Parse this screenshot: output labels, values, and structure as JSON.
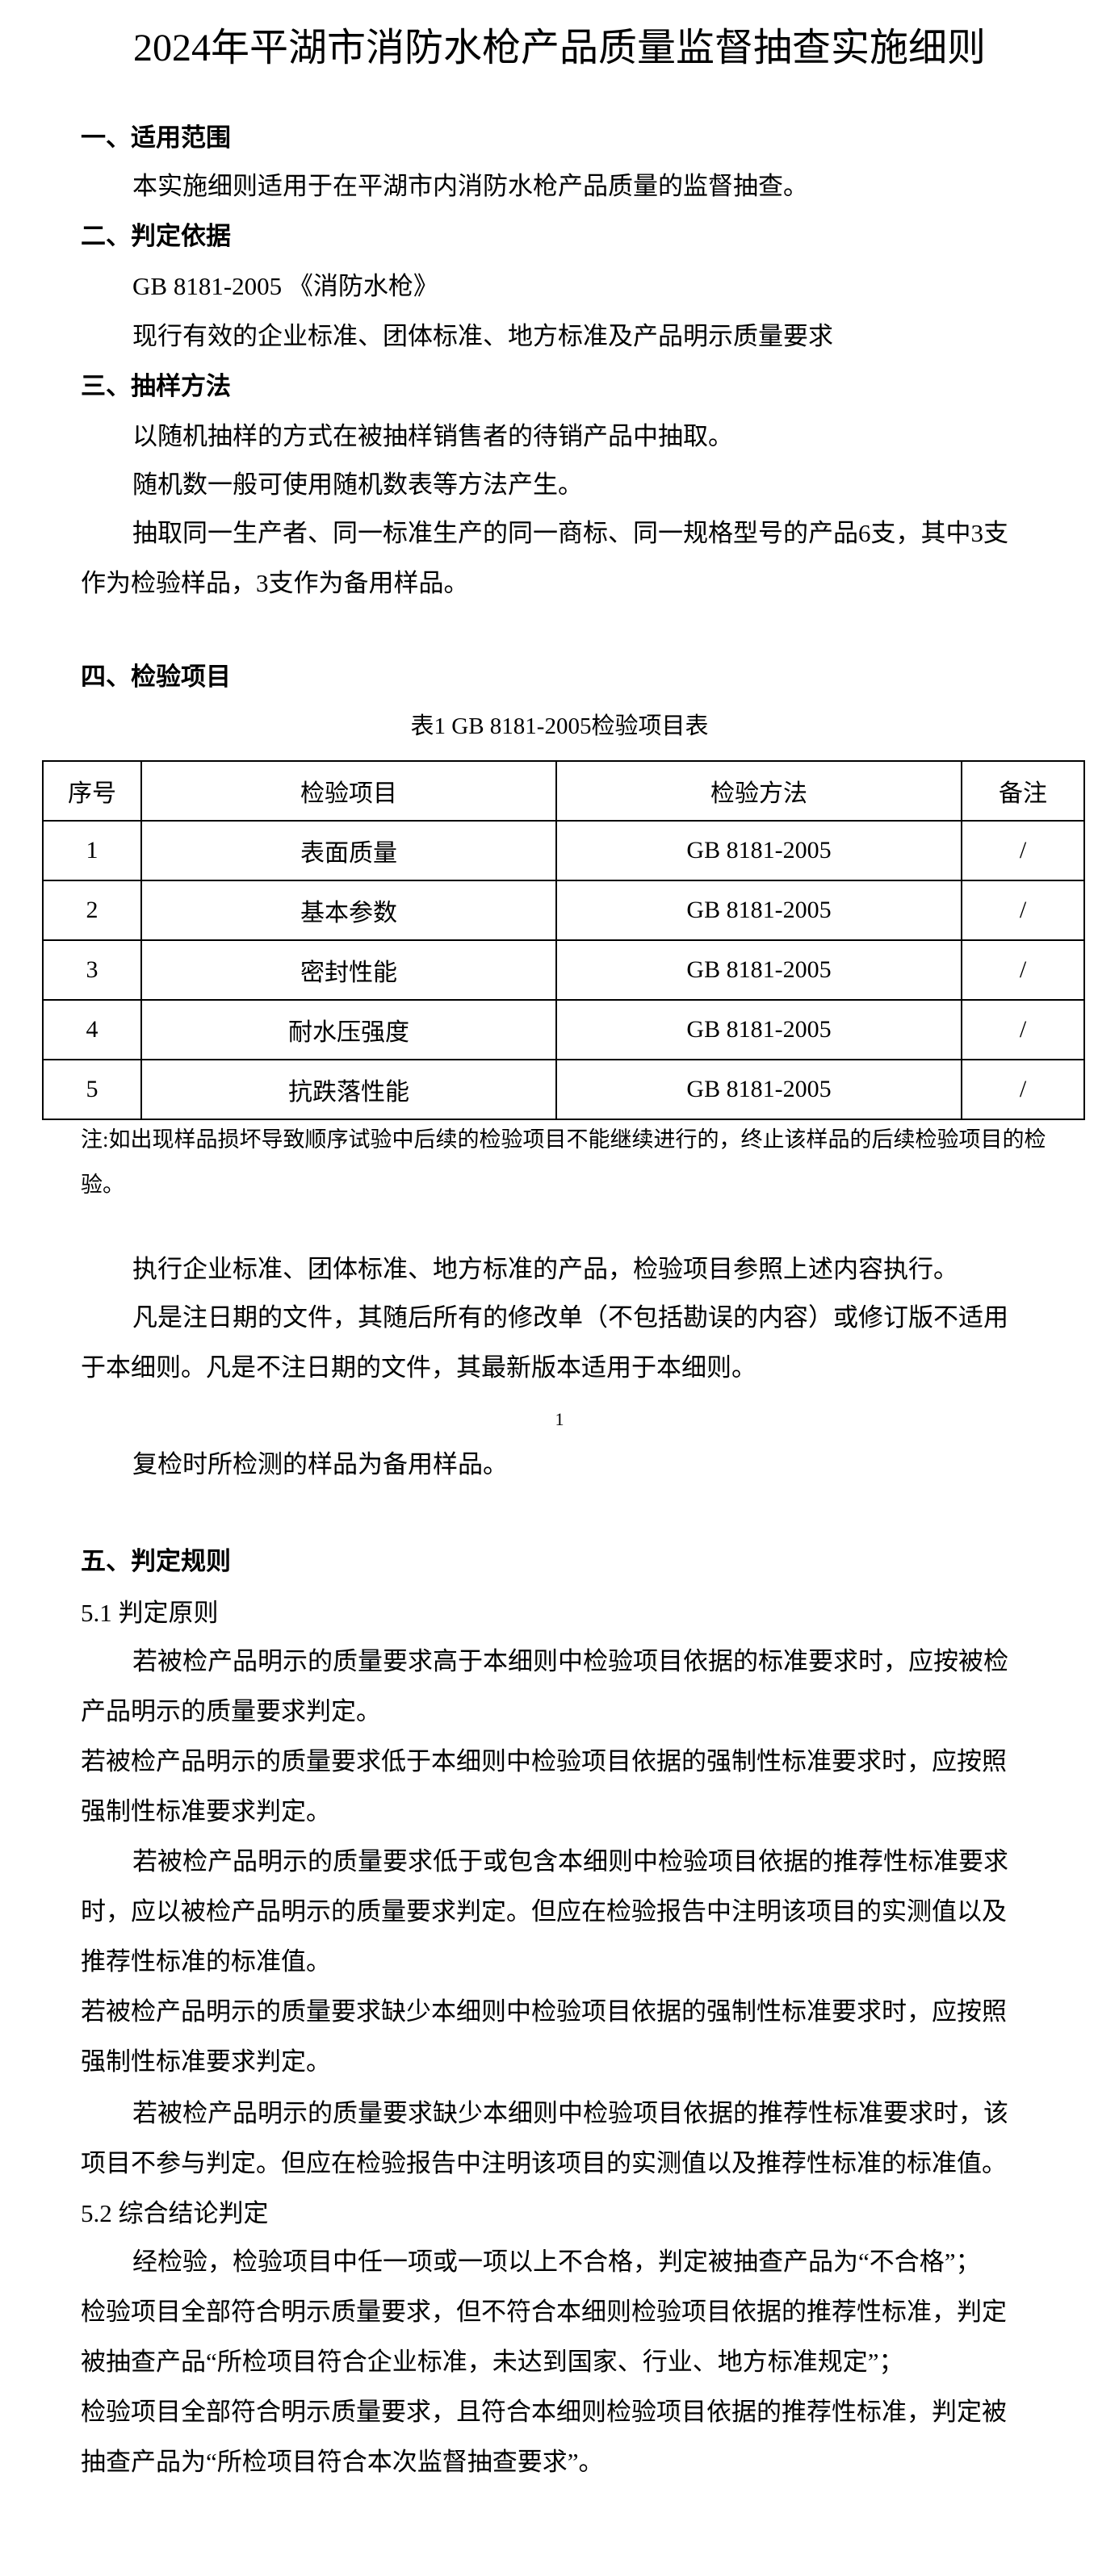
{
  "title": "2024年平湖市消防水枪产品质量监督抽查实施细则",
  "s1": {
    "heading": "一、适用范围",
    "p1": "本实施细则适用于在平湖市内消防水枪产品质量的监督抽查。"
  },
  "s2": {
    "heading": "二、判定依据",
    "p1": "GB 8181-2005 《消防水枪》",
    "p2": "现行有效的企业标准、团体标准、地方标准及产品明示质量要求"
  },
  "s3": {
    "heading": "三、抽样方法",
    "p1": "以随机抽样的方式在被抽样销售者的待销产品中抽取。",
    "p2": "随机数一般可使用随机数表等方法产生。",
    "p3": "抽取同一生产者、同一标准生产的同一商标、同一规格型号的产品6支，其中3支作为检验样品，3支作为备用样品。"
  },
  "s4": {
    "heading": "四、检验项目",
    "caption": "表1 GB 8181-2005检验项目表",
    "columns": [
      "序号",
      "检验项目",
      "检验方法",
      "备注"
    ],
    "rows": [
      [
        "1",
        "表面质量",
        "GB 8181-2005",
        "/"
      ],
      [
        "2",
        "基本参数",
        "GB 8181-2005",
        "/"
      ],
      [
        "3",
        "密封性能",
        "GB 8181-2005",
        "/"
      ],
      [
        "4",
        "耐水压强度",
        "GB 8181-2005",
        "/"
      ],
      [
        "5",
        "抗跌落性能",
        "GB 8181-2005",
        "/"
      ]
    ],
    "note": "注:如出现样品损坏导致顺序试验中后续的检验项目不能继续进行的，终止该样品的后续检验项目的检验。",
    "p1": "执行企业标准、团体标准、地方标准的产品，检验项目参照上述内容执行。",
    "p2": "凡是注日期的文件，其随后所有的修改单（不包括勘误的内容）或修订版不适用于本细则。凡是不注日期的文件，其最新版本适用于本细则。",
    "page_number": "1",
    "p3": "复检时所检测的样品为备用样品。"
  },
  "s5": {
    "heading": "五、判定规则",
    "sub1": "5.1 判定原则",
    "p1": "若被检产品明示的质量要求高于本细则中检验项目依据的标准要求时，应按被检产品明示的质量要求判定。",
    "p2": "若被检产品明示的质量要求低于本细则中检验项目依据的强制性标准要求时，应按照强制性标准要求判定。",
    "p3": "若被检产品明示的质量要求低于或包含本细则中检验项目依据的推荐性标准要求时，应以被检产品明示的质量要求判定。但应在检验报告中注明该项目的实测值以及推荐性标准的标准值。",
    "p4": "若被检产品明示的质量要求缺少本细则中检验项目依据的强制性标准要求时，应按照强制性标准要求判定。",
    "p5": "若被检产品明示的质量要求缺少本细则中检验项目依据的推荐性标准要求时，该项目不参与判定。但应在检验报告中注明该项目的实测值以及推荐性标准的标准值。",
    "sub2": "5.2 综合结论判定",
    "p6": "经检验，检验项目中任一项或一项以上不合格，判定被抽查产品为“不合格”；",
    "p7": "检验项目全部符合明示质量要求，但不符合本细则检验项目依据的推荐性标准，判定被抽查产品“所检项目符合企业标准，未达到国家、行业、地方标准规定”；",
    "p8": "检验项目全部符合明示质量要求，且符合本细则检验项目依据的推荐性标准，判定被抽查产品为“所检项目符合本次监督抽查要求”。"
  }
}
